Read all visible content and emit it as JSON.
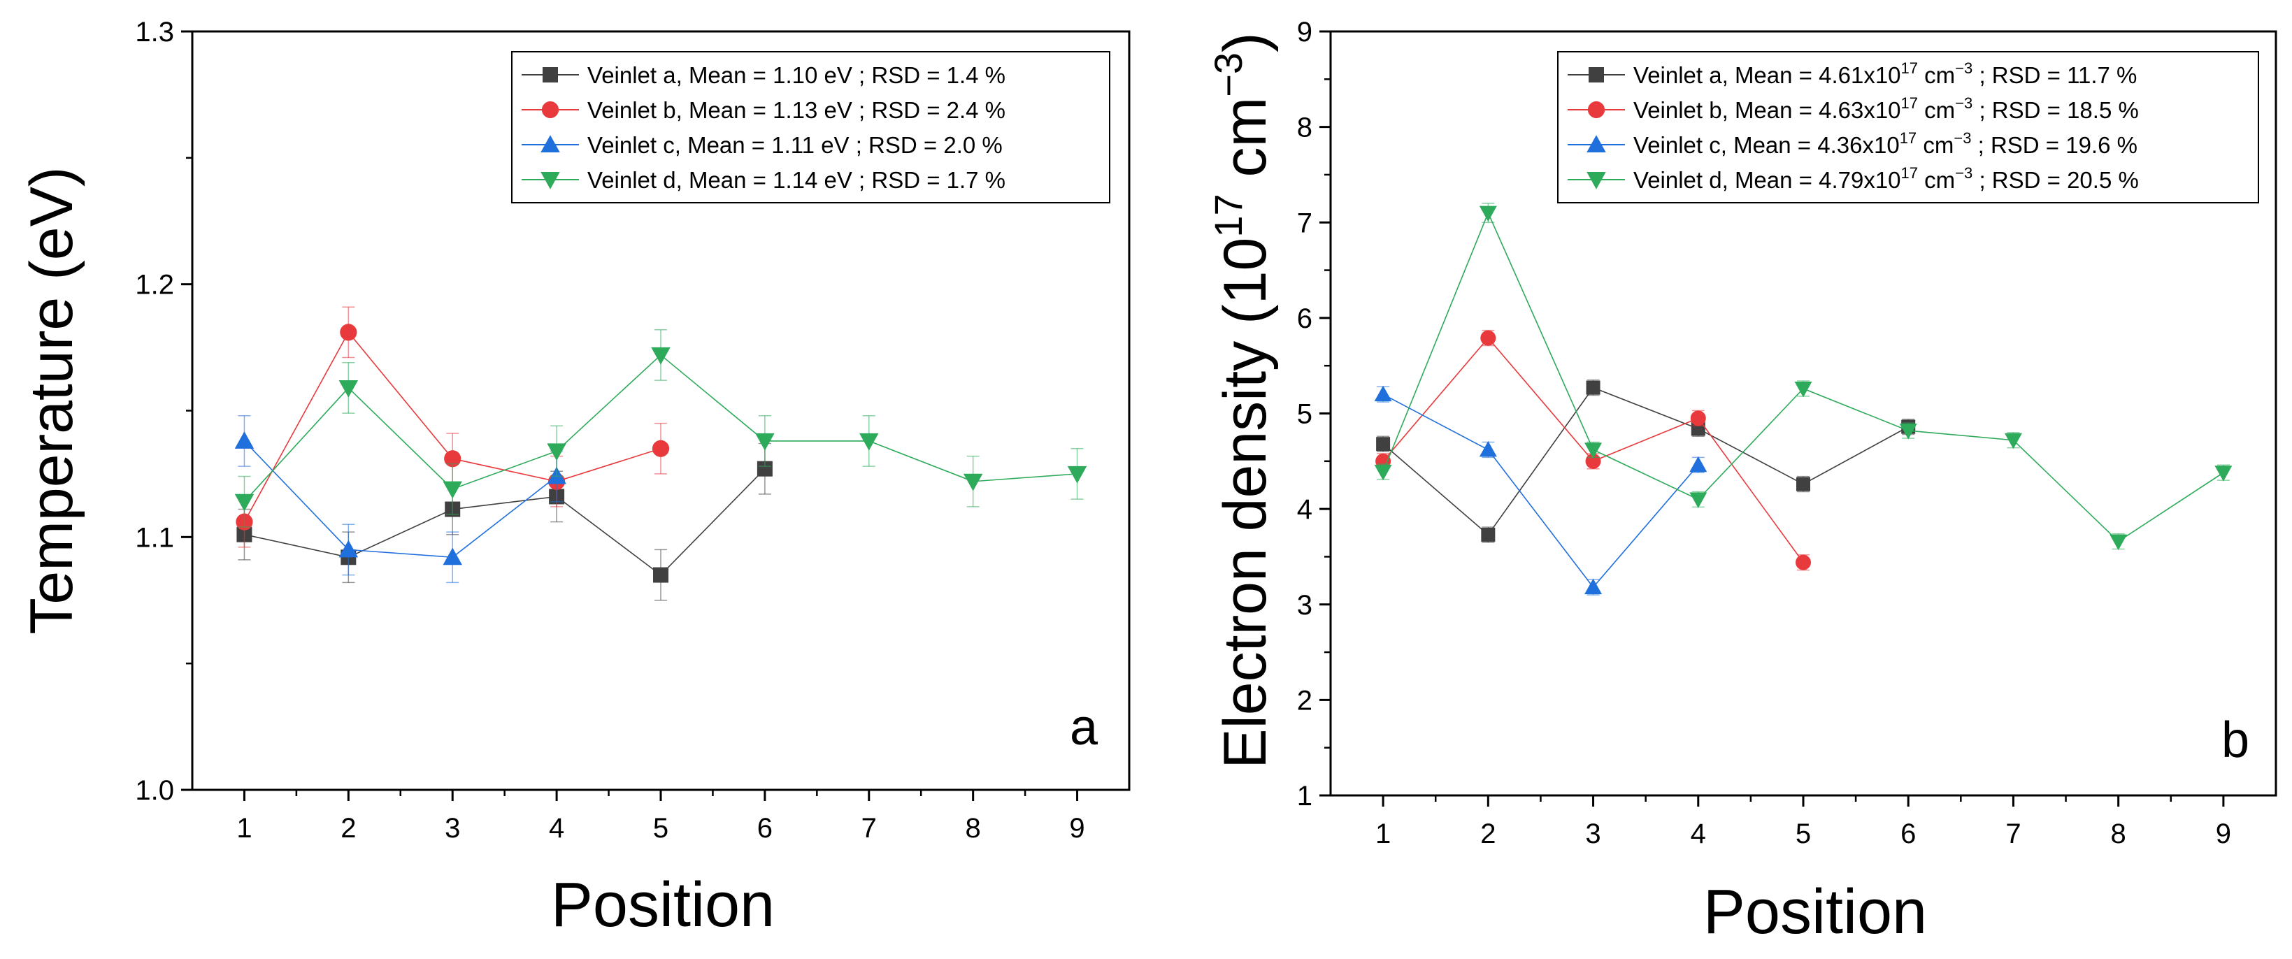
{
  "chart_data": [
    {
      "type": "line",
      "panel_label": "a",
      "xlabel": "Position",
      "ylabel": "Temperature (eV)",
      "xlim": [
        0.5,
        9.5
      ],
      "ylim": [
        1.0,
        1.3
      ],
      "x_ticks": [
        "1",
        "2",
        "3",
        "4",
        "5",
        "6",
        "7",
        "8",
        "9"
      ],
      "y_ticks": [
        "1.0",
        "1.1",
        "1.2",
        "1.3"
      ],
      "grid": false,
      "legend_position": "top-right",
      "series": [
        {
          "name": "Veinlet a",
          "legend": "Veinlet a, Mean = 1.10 eV ; RSD = 1.4 %",
          "color": "#404040",
          "marker": "square",
          "x": [
            1,
            2,
            3,
            4,
            5,
            6
          ],
          "y": [
            1.101,
            1.092,
            1.111,
            1.116,
            1.085,
            1.127
          ],
          "err": [
            0.01,
            0.01,
            0.01,
            0.01,
            0.01,
            0.01
          ]
        },
        {
          "name": "Veinlet b",
          "legend": "Veinlet b, Mean = 1.13 eV ; RSD = 2.4 %",
          "color": "#e8393c",
          "marker": "circle",
          "x": [
            1,
            2,
            3,
            4,
            5
          ],
          "y": [
            1.106,
            1.181,
            1.131,
            1.122,
            1.135
          ],
          "err": [
            0.01,
            0.01,
            0.01,
            0.01,
            0.01
          ]
        },
        {
          "name": "Veinlet c",
          "legend": "Veinlet c, Mean = 1.11 eV ; RSD = 2.0 %",
          "color": "#1f6fdc",
          "marker": "triangle-up",
          "x": [
            1,
            2,
            3,
            4
          ],
          "y": [
            1.138,
            1.095,
            1.092,
            1.124
          ],
          "err": [
            0.01,
            0.01,
            0.01,
            0.01
          ]
        },
        {
          "name": "Veinlet d",
          "legend": "Veinlet d, Mean = 1.14 eV ; RSD = 1.7 %",
          "color": "#2eaa5b",
          "marker": "triangle-down",
          "x": [
            1,
            2,
            3,
            4,
            5,
            6,
            7,
            8,
            9
          ],
          "y": [
            1.114,
            1.159,
            1.119,
            1.134,
            1.172,
            1.138,
            1.138,
            1.122,
            1.125
          ],
          "err": [
            0.01,
            0.01,
            0.01,
            0.01,
            0.01,
            0.01,
            0.01,
            0.01,
            0.01
          ]
        }
      ]
    },
    {
      "type": "line",
      "panel_label": "b",
      "xlabel": "Position",
      "ylabel_main": "Electron density (10",
      "ylabel_exp1": "17",
      "ylabel_mid": " cm",
      "ylabel_exp2": "−3",
      "ylabel_end": ")",
      "xlim": [
        0.5,
        9.5
      ],
      "ylim": [
        1,
        9
      ],
      "x_ticks": [
        "1",
        "2",
        "3",
        "4",
        "5",
        "6",
        "7",
        "8",
        "9"
      ],
      "y_ticks": [
        "1",
        "2",
        "3",
        "4",
        "5",
        "6",
        "7",
        "8",
        "9"
      ],
      "grid": false,
      "legend_position": "top-right",
      "series": [
        {
          "name": "Veinlet a",
          "legend_pre": "Veinlet a, Mean = 4.61x10",
          "legend_exp": "17",
          "legend_mid": " cm",
          "legend_exp2": "−3",
          "legend_post": " ; RSD = 11.7 %",
          "color": "#404040",
          "marker": "square",
          "x": [
            1,
            2,
            3,
            4,
            5,
            6
          ],
          "y": [
            4.68,
            3.73,
            5.27,
            4.84,
            4.26,
            4.86
          ],
          "err": [
            0.08,
            0.08,
            0.08,
            0.08,
            0.08,
            0.08
          ]
        },
        {
          "name": "Veinlet b",
          "legend_pre": "Veinlet b, Mean = 4.63x10",
          "legend_exp": "17",
          "legend_mid": " cm",
          "legend_exp2": "−3",
          "legend_post": " ; RSD = 18.5 %",
          "color": "#e8393c",
          "marker": "circle",
          "x": [
            1,
            2,
            3,
            4,
            5
          ],
          "y": [
            4.5,
            5.79,
            4.5,
            4.95,
            3.44
          ],
          "err": [
            0.08,
            0.08,
            0.08,
            0.08,
            0.08
          ]
        },
        {
          "name": "Veinlet c",
          "legend_pre": "Veinlet c, Mean = 4.36x10",
          "legend_exp": "17",
          "legend_mid": " cm",
          "legend_exp2": "−3",
          "legend_post": " ; RSD = 19.6 %",
          "color": "#1f6fdc",
          "marker": "triangle-up",
          "x": [
            1,
            2,
            3,
            4
          ],
          "y": [
            5.2,
            4.62,
            3.18,
            4.46
          ],
          "err": [
            0.08,
            0.08,
            0.08,
            0.08
          ]
        },
        {
          "name": "Veinlet d",
          "legend_pre": "Veinlet d, Mean = 4.79x10",
          "legend_exp": "17",
          "legend_mid": " cm",
          "legend_exp2": "−3",
          "legend_post": " ; RSD = 20.5 %",
          "color": "#2eaa5b",
          "marker": "triangle-down",
          "x": [
            1,
            2,
            3,
            4,
            5,
            6,
            7,
            8,
            9
          ],
          "y": [
            4.39,
            7.1,
            4.62,
            4.1,
            5.26,
            4.82,
            4.72,
            3.66,
            4.38
          ],
          "err": [
            0.08,
            0.1,
            0.08,
            0.08,
            0.08,
            0.08,
            0.08,
            0.08,
            0.08
          ]
        }
      ]
    }
  ]
}
